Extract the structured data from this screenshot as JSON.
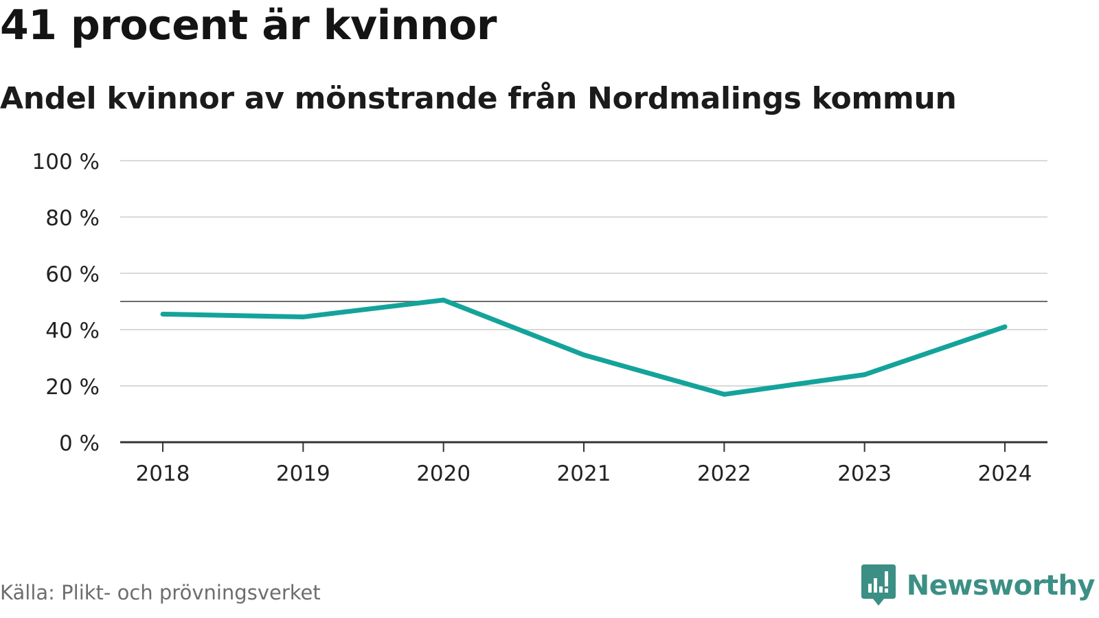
{
  "header": {
    "title": "41 procent är kvinnor",
    "subtitle": "Andel kvinnor av mönstrande från Nordmalings kommun"
  },
  "footer": {
    "source": "Källa: Plikt- och prövningsverket",
    "brand": "Newsworthy"
  },
  "colors": {
    "line": "#14a39a",
    "grid": "#d9d9d9",
    "reference": "#6b6b6b",
    "axis": "#333333",
    "brand": "#3c8f84",
    "text": "#222222"
  },
  "chart_data": {
    "type": "line",
    "title": "41 procent är kvinnor",
    "subtitle": "Andel kvinnor av mönstrande från Nordmalings kommun",
    "xlabel": "",
    "ylabel": "",
    "x": [
      "2018",
      "2019",
      "2020",
      "2021",
      "2022",
      "2023",
      "2024"
    ],
    "series": [
      {
        "name": "Andel kvinnor",
        "values": [
          45.5,
          44.5,
          50.5,
          31,
          17,
          24,
          41
        ]
      }
    ],
    "reference_line": 50,
    "ylim": [
      0,
      100
    ],
    "yticks": [
      0,
      20,
      40,
      60,
      80,
      100
    ],
    "ytick_labels": [
      "0 %",
      "20 %",
      "40 %",
      "60 %",
      "80 %",
      "100 %"
    ],
    "grid": true,
    "legend": "none"
  }
}
